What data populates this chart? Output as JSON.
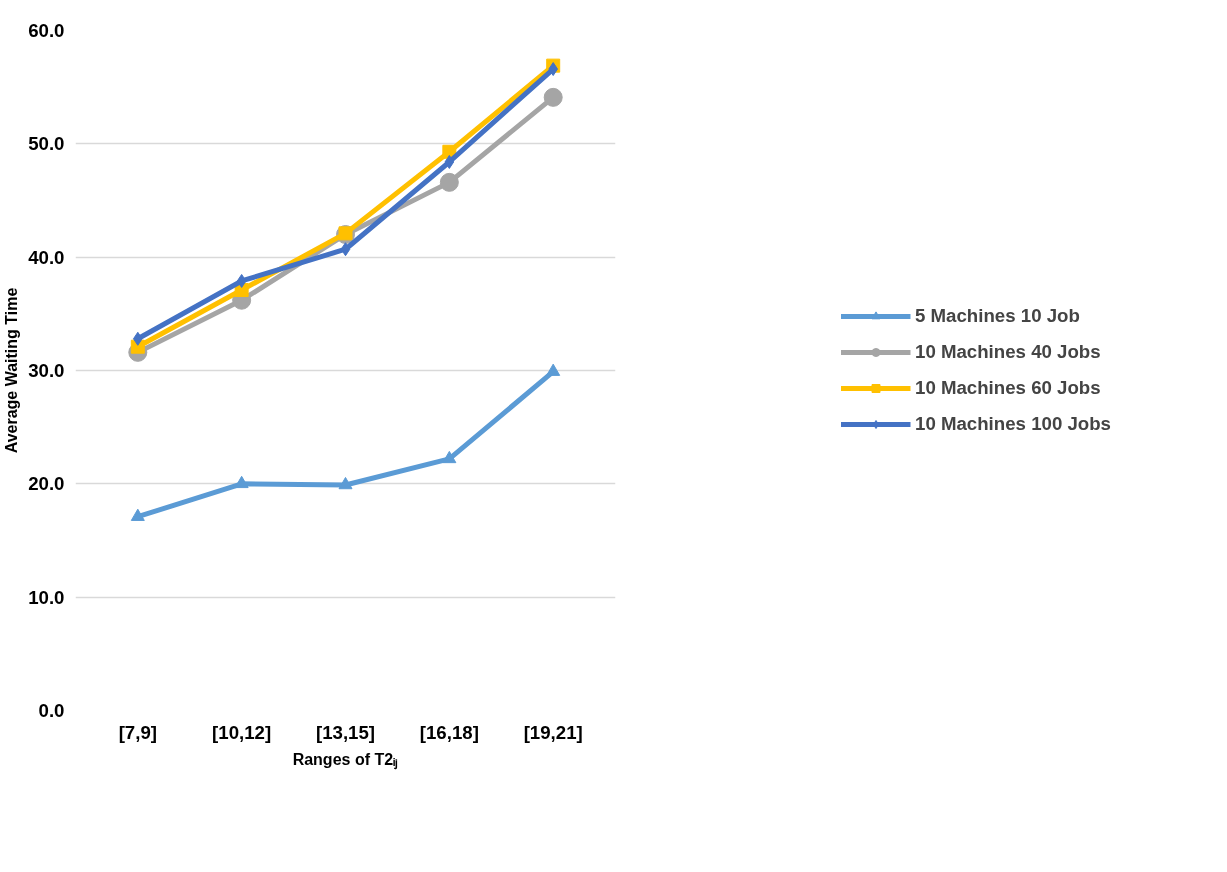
{
  "chart_data": {
    "type": "line",
    "xlabel": "Ranges of T2ᵢⱼ",
    "ylabel": "Average Waiting Time",
    "categories": [
      "[7,9]",
      "[10,12]",
      "[13,15]",
      "[16,18]",
      "[19,21]"
    ],
    "ylim": [
      0,
      60
    ],
    "yticks": [
      {
        "value": 0,
        "label": "0.0"
      },
      {
        "value": 10,
        "label": "10.0"
      },
      {
        "value": 20,
        "label": "20.0"
      },
      {
        "value": 30,
        "label": "30.0"
      },
      {
        "value": 40,
        "label": "40.0"
      },
      {
        "value": 50,
        "label": "50.0"
      },
      {
        "value": 60,
        "label": "60.0"
      }
    ],
    "grid": "y",
    "legend": "right",
    "line_style": "solid",
    "series": [
      {
        "name": "5 Machines 10 Job",
        "color": "#5b9bd5",
        "marker": "triangle",
        "values": [
          17.1,
          20.0,
          19.9,
          22.2,
          29.9
        ]
      },
      {
        "name": "10 Machines 40 Jobs",
        "color": "#a5a5a5",
        "marker": "circle",
        "values": [
          31.6,
          36.2,
          42.0,
          46.6,
          54.1
        ]
      },
      {
        "name": "10 Machines 60 Jobs",
        "color": "#ffc000",
        "marker": "square",
        "values": [
          32.1,
          37.1,
          42.1,
          49.3,
          56.9
        ]
      },
      {
        "name": "10 Machines 100 Jobs",
        "color": "#4472c4",
        "marker": "diamond",
        "values": [
          32.8,
          37.9,
          40.7,
          48.4,
          56.6
        ]
      }
    ]
  }
}
